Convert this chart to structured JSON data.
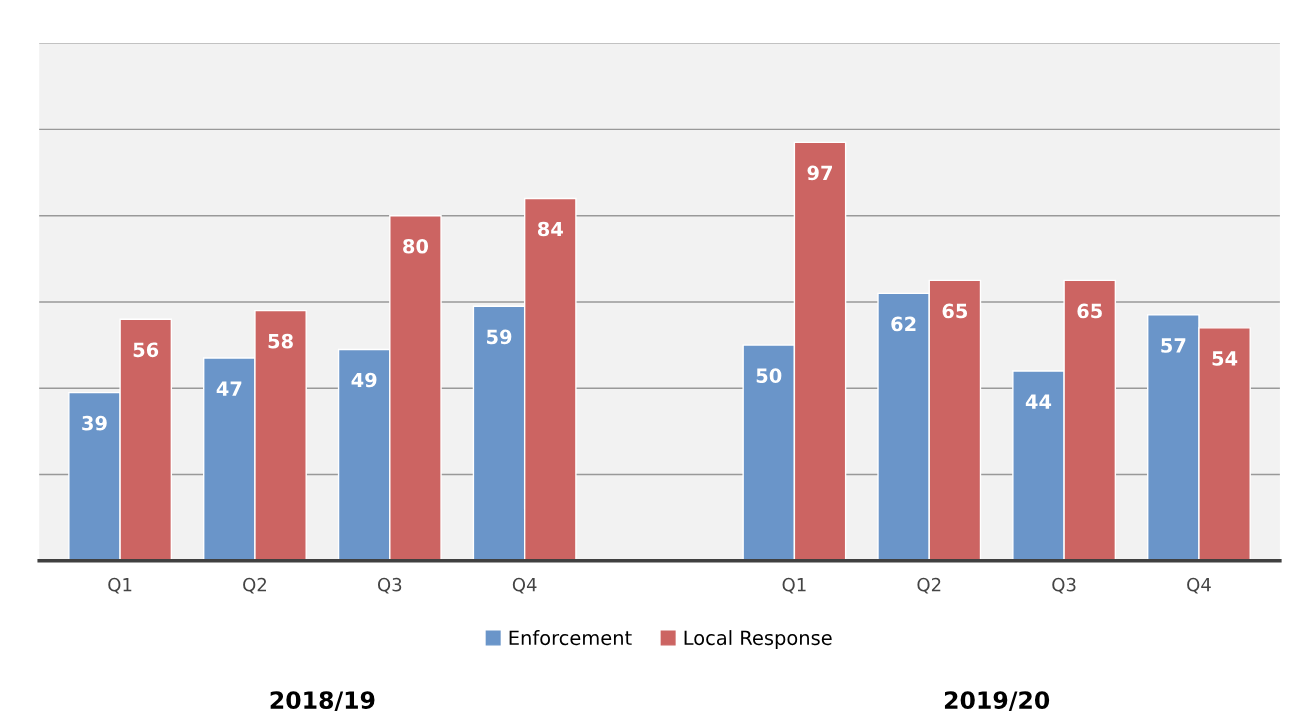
{
  "chart_data": {
    "type": "bar",
    "categories": [
      "Q1",
      "Q2",
      "Q3",
      "Q4",
      null,
      "Q1",
      "Q2",
      "Q3",
      "Q4"
    ],
    "series": [
      {
        "name": "Enforcement",
        "color": "#6a95c9",
        "values": [
          39,
          47,
          49,
          59,
          null,
          50,
          62,
          44,
          57
        ]
      },
      {
        "name": "Local Response",
        "color": "#cc6462",
        "values": [
          56,
          58,
          80,
          84,
          null,
          97,
          65,
          65,
          54
        ]
      }
    ],
    "ylim": [
      0,
      120
    ],
    "yticks": [
      {
        "value": 0,
        "label": null
      },
      {
        "value": 20,
        "label": null
      },
      {
        "value": 40,
        "label": null
      },
      {
        "value": 60,
        "label": null
      },
      {
        "value": 80,
        "label": null
      },
      {
        "value": 100,
        "label": null
      },
      {
        "value": 120,
        "label": null
      }
    ],
    "tick_labels": "x",
    "grid": "y",
    "legend": "bottom",
    "data_labels": true,
    "annotations": [
      "2018/19",
      "2019/20"
    ]
  }
}
